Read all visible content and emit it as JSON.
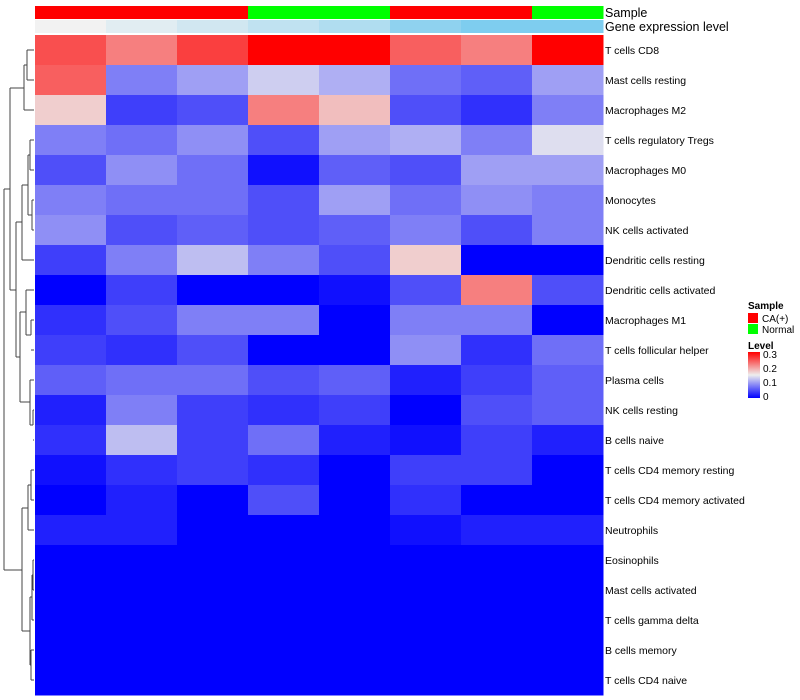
{
  "chart_data": {
    "type": "heatmap",
    "colormap": {
      "low": "#0000ff",
      "mid": "#eeeeee",
      "high": "#ff0000",
      "limits": [
        0,
        0.3
      ]
    },
    "columns": [
      {
        "sample": "CA(+)",
        "gene_expression_level": 0.12
      },
      {
        "sample": "CA(+)",
        "gene_expression_level": 0.11
      },
      {
        "sample": "CA(+)",
        "gene_expression_level": 0.1
      },
      {
        "sample": "Normal",
        "gene_expression_level": 0.09
      },
      {
        "sample": "Normal",
        "gene_expression_level": 0.08
      },
      {
        "sample": "CA(+)",
        "gene_expression_level": 0.06
      },
      {
        "sample": "CA(+)",
        "gene_expression_level": 0.05
      },
      {
        "sample": "Normal",
        "gene_expression_level": 0.05
      }
    ],
    "rows": [
      {
        "label": "T cells CD8",
        "values": [
          0.25,
          0.22,
          0.26,
          0.3,
          0.3,
          0.24,
          0.22,
          0.3
        ]
      },
      {
        "label": "Mast cells resting",
        "values": [
          0.24,
          0.08,
          0.1,
          0.13,
          0.11,
          0.07,
          0.06,
          0.1
        ]
      },
      {
        "label": "Macrophages M2",
        "values": [
          0.17,
          0.04,
          0.05,
          0.22,
          0.18,
          0.05,
          0.03,
          0.08
        ]
      },
      {
        "label": "T cells regulatory  Tregs",
        "values": [
          0.08,
          0.07,
          0.09,
          0.05,
          0.1,
          0.11,
          0.08,
          0.14
        ]
      },
      {
        "label": "Macrophages M0",
        "values": [
          0.05,
          0.09,
          0.07,
          0.01,
          0.06,
          0.05,
          0.1,
          0.1
        ]
      },
      {
        "label": "Monocytes",
        "values": [
          0.08,
          0.07,
          0.07,
          0.05,
          0.1,
          0.07,
          0.09,
          0.08
        ]
      },
      {
        "label": "NK cells activated",
        "values": [
          0.09,
          0.05,
          0.06,
          0.05,
          0.06,
          0.08,
          0.05,
          0.08
        ]
      },
      {
        "label": "Dendritic cells resting",
        "values": [
          0.04,
          0.08,
          0.12,
          0.08,
          0.05,
          0.17,
          0.0,
          0.0
        ]
      },
      {
        "label": "Dendritic cells activated",
        "values": [
          0.0,
          0.04,
          0.0,
          0.0,
          0.01,
          0.05,
          0.22,
          0.05
        ]
      },
      {
        "label": "Macrophages M1",
        "values": [
          0.03,
          0.05,
          0.08,
          0.08,
          0.0,
          0.08,
          0.08,
          0.0
        ]
      },
      {
        "label": "T cells follicular helper",
        "values": [
          0.04,
          0.03,
          0.05,
          0.0,
          0.0,
          0.09,
          0.03,
          0.07
        ]
      },
      {
        "label": "Plasma cells",
        "values": [
          0.06,
          0.07,
          0.07,
          0.05,
          0.06,
          0.02,
          0.04,
          0.06
        ]
      },
      {
        "label": "NK cells resting",
        "values": [
          0.02,
          0.08,
          0.04,
          0.03,
          0.04,
          0.0,
          0.05,
          0.06
        ]
      },
      {
        "label": "B cells naive",
        "values": [
          0.03,
          0.12,
          0.04,
          0.07,
          0.02,
          0.01,
          0.04,
          0.02
        ]
      },
      {
        "label": "T cells CD4 memory resting",
        "values": [
          0.01,
          0.03,
          0.04,
          0.03,
          0.0,
          0.04,
          0.04,
          0.0
        ]
      },
      {
        "label": "T cells CD4 memory activated",
        "values": [
          0.0,
          0.02,
          0.0,
          0.05,
          0.0,
          0.03,
          0.0,
          0.0
        ]
      },
      {
        "label": "Neutrophils",
        "values": [
          0.02,
          0.02,
          0.0,
          0.0,
          0.0,
          0.01,
          0.02,
          0.02
        ]
      },
      {
        "label": "Eosinophils",
        "values": [
          0,
          0,
          0,
          0,
          0,
          0,
          0,
          0
        ]
      },
      {
        "label": "Mast cells activated",
        "values": [
          0,
          0,
          0,
          0,
          0,
          0,
          0,
          0
        ]
      },
      {
        "label": "T cells gamma delta",
        "values": [
          0,
          0,
          0,
          0,
          0,
          0,
          0,
          0
        ]
      },
      {
        "label": "B cells memory",
        "values": [
          0,
          0,
          0,
          0,
          0,
          0,
          0,
          0
        ]
      },
      {
        "label": "T cells CD4 naive",
        "values": [
          0,
          0,
          0,
          0,
          0,
          0,
          0,
          0
        ]
      }
    ],
    "annotation_labels": {
      "sample": "Sample",
      "gene_expression": "Gene expression level"
    },
    "legend": {
      "sample": {
        "title": "Sample",
        "entries": [
          {
            "label": "CA(+)",
            "color": "#ff0000"
          },
          {
            "label": "Normal",
            "color": "#00ff00"
          }
        ]
      },
      "level": {
        "title": "Level",
        "ticks": [
          "0.3",
          "0.2",
          "0.1",
          "0"
        ]
      }
    },
    "annotation_colors": {
      "gene_expression_high": "#f2f2f2",
      "gene_expression_low": "#7ecdef"
    }
  }
}
